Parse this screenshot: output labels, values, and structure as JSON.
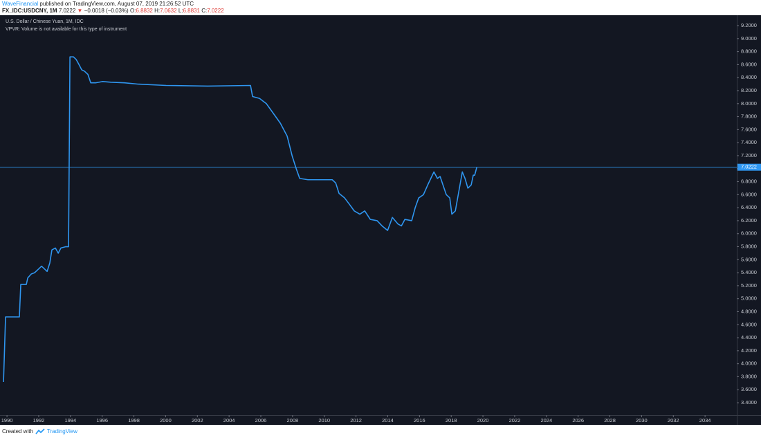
{
  "header": {
    "author": "WaveFinancial",
    "published": "published on TradingView.com, August 07, 2019 21:26:52 UTC",
    "symbol": "FX_IDC:USDCNY, 1M",
    "last": "7.0222",
    "direction": "▼",
    "change": "−0.0018 (−0.03%)",
    "ohlc": [
      {
        "label": "O:",
        "value": "6.8832"
      },
      {
        "label": "H:",
        "value": "7.0632"
      },
      {
        "label": "L:",
        "value": "6.8831"
      },
      {
        "label": "C:",
        "value": "7.0222"
      }
    ]
  },
  "chart_data": {
    "type": "line",
    "title": "U.S. Dollar / Chinese Yuan, 1M, IDC",
    "annotation": "VPVR: Volume is not available for this type of instrument",
    "color": "#2f96f0",
    "x": [
      1989.78,
      1989.91,
      1990.78,
      1990.87,
      1991.22,
      1991.31,
      1991.53,
      1991.74,
      1991.96,
      1992.18,
      1992.4,
      1992.53,
      1992.7,
      1992.83,
      1993.05,
      1993.23,
      1993.4,
      1993.71,
      1993.88,
      1993.97,
      1994.19,
      1994.36,
      1994.54,
      1994.71,
      1994.88,
      1995.1,
      1995.28,
      1995.58,
      1996.02,
      1996.54,
      1997.41,
      1998.29,
      2000.03,
      2002.65,
      2005.35,
      2005.48,
      2005.92,
      2006.35,
      2006.79,
      2007.23,
      2007.66,
      2007.97,
      2008.23,
      2008.45,
      2008.97,
      2010.5,
      2010.72,
      2010.93,
      2011.28,
      2011.59,
      2011.89,
      2012.24,
      2012.55,
      2012.9,
      2013.33,
      2013.64,
      2013.99,
      2014.29,
      2014.64,
      2014.86,
      2015.08,
      2015.51,
      2015.73,
      2015.95,
      2016.25,
      2016.52,
      2016.91,
      2017.13,
      2017.3,
      2017.48,
      2017.69,
      2017.91,
      2018.04,
      2018.26,
      2018.48,
      2018.7,
      2018.87,
      2019.05,
      2019.26,
      2019.39,
      2019.48,
      2019.61
    ],
    "values": [
      3.72,
      4.72,
      4.72,
      5.22,
      5.22,
      5.32,
      5.38,
      5.4,
      5.45,
      5.5,
      5.45,
      5.42,
      5.55,
      5.75,
      5.78,
      5.7,
      5.78,
      5.8,
      5.8,
      8.72,
      8.72,
      8.68,
      8.6,
      8.52,
      8.5,
      8.45,
      8.32,
      8.32,
      8.34,
      8.33,
      8.32,
      8.3,
      8.28,
      8.27,
      8.28,
      8.11,
      8.08,
      8.0,
      7.85,
      7.7,
      7.5,
      7.2,
      7.0,
      6.85,
      6.83,
      6.83,
      6.78,
      6.62,
      6.55,
      6.45,
      6.35,
      6.3,
      6.35,
      6.22,
      6.2,
      6.12,
      6.05,
      6.25,
      6.15,
      6.12,
      6.22,
      6.2,
      6.4,
      6.55,
      6.6,
      6.75,
      6.95,
      6.85,
      6.88,
      6.75,
      6.6,
      6.55,
      6.3,
      6.35,
      6.65,
      6.95,
      6.85,
      6.7,
      6.75,
      6.9,
      6.9,
      7.02
    ],
    "price_line": 7.0222,
    "xlim": [
      1989.56,
      2036.0
    ],
    "xticks": [
      1990,
      1992,
      1994,
      1996,
      1998,
      2000,
      2002,
      2004,
      2006,
      2008,
      2010,
      2012,
      2014,
      2016,
      2018,
      2020,
      2022,
      2024,
      2026,
      2028,
      2030,
      2032,
      2034
    ],
    "ylim": [
      3.209,
      9.36
    ],
    "yticks": [
      {
        "value": 3.4,
        "label": "3.4000"
      },
      {
        "value": 3.6,
        "label": "3.6000"
      },
      {
        "value": 3.8,
        "label": "3.8000"
      },
      {
        "value": 4.0,
        "label": "4.0000"
      },
      {
        "value": 4.2,
        "label": "4.2000"
      },
      {
        "value": 4.4,
        "label": "4.4000"
      },
      {
        "value": 4.6,
        "label": "4.6000"
      },
      {
        "value": 4.8,
        "label": "4.8000"
      },
      {
        "value": 5.0,
        "label": "5.0000"
      },
      {
        "value": 5.2,
        "label": "5.2000"
      },
      {
        "value": 5.4,
        "label": "5.4000"
      },
      {
        "value": 5.6,
        "label": "5.6000"
      },
      {
        "value": 5.8,
        "label": "5.8000"
      },
      {
        "value": 6.0,
        "label": "6.0000"
      },
      {
        "value": 6.2,
        "label": "6.2000"
      },
      {
        "value": 6.4,
        "label": "6.4000"
      },
      {
        "value": 6.6,
        "label": "6.6000"
      },
      {
        "value": 6.8,
        "label": "6.8000"
      },
      {
        "value": 7.0,
        "label": "7.0000"
      },
      {
        "value": 7.2,
        "label": "7.2000"
      },
      {
        "value": 7.4,
        "label": "7.4000"
      },
      {
        "value": 7.6,
        "label": "7.6000"
      },
      {
        "value": 7.8,
        "label": "7.8000"
      },
      {
        "value": 8.0,
        "label": "8.0000"
      },
      {
        "value": 8.2,
        "label": "8.2000"
      },
      {
        "value": 8.4,
        "label": "8.4000"
      },
      {
        "value": 8.6,
        "label": "8.6000"
      },
      {
        "value": 8.8,
        "label": "8.8000"
      },
      {
        "value": 9.0,
        "label": "9.0000"
      },
      {
        "value": 9.2,
        "label": "9.2000"
      }
    ]
  },
  "footer": {
    "text": "Created with",
    "brand": "TradingView"
  }
}
